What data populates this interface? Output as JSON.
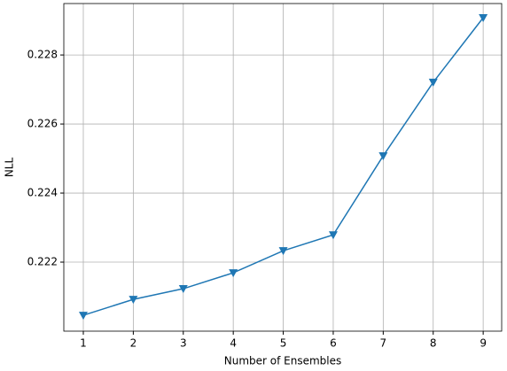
{
  "chart_data": {
    "type": "line",
    "xlabel": "Number of Ensembles",
    "ylabel": "NLL",
    "x": [
      1,
      2,
      3,
      4,
      5,
      6,
      7,
      8,
      9
    ],
    "series": [
      {
        "color": "#1f77b4",
        "marker": "triangle-down",
        "values": [
          0.22046,
          0.22092,
          0.22123,
          0.22169,
          0.22233,
          0.22279,
          0.22508,
          0.22721,
          0.22908
        ]
      }
    ],
    "xlim": [
      0.61,
      9.37
    ],
    "xticks": [
      1,
      2,
      3,
      4,
      5,
      6,
      7,
      8,
      9
    ],
    "ylim": [
      0.22,
      0.22949
    ],
    "yticks": [
      0.222,
      0.224,
      0.226,
      0.228
    ],
    "grid": true
  }
}
